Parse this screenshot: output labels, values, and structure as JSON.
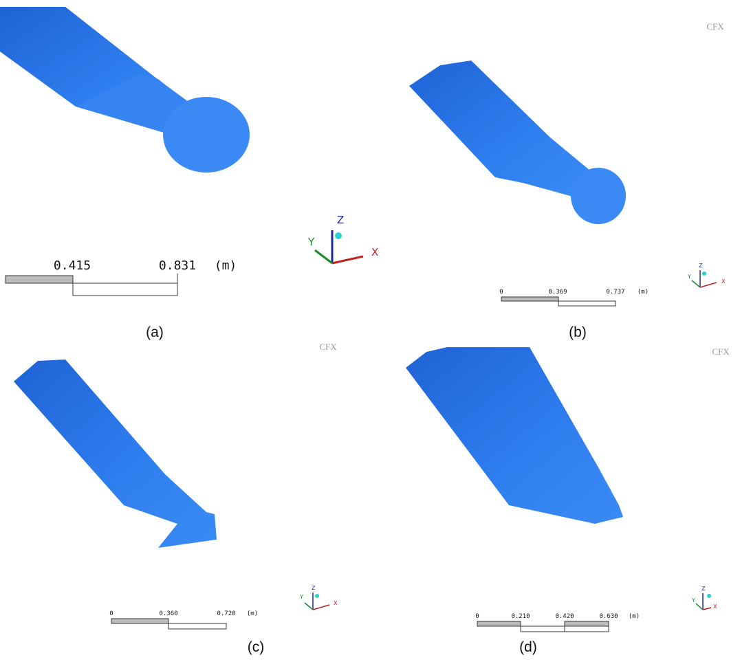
{
  "panels": [
    {
      "caption": "(a)",
      "scale": {
        "labels": [
          "0.415",
          "0.831"
        ],
        "unit": "(m)"
      },
      "axes": {
        "x": "X",
        "y": "Y",
        "z": "Z"
      }
    },
    {
      "caption": "(b)",
      "logo": "CFX",
      "scale": {
        "labels": [
          "0",
          "0.369",
          "0.737"
        ],
        "unit": "(m)"
      },
      "axes": {
        "x": "X",
        "y": "Y",
        "z": "Z"
      }
    },
    {
      "caption": "(c)",
      "logo": "CFX",
      "scale": {
        "labels": [
          "0",
          "0.360",
          "0.720"
        ],
        "unit": "(m)"
      },
      "axes": {
        "x": "X",
        "y": "Y",
        "z": "Z"
      }
    },
    {
      "caption": "(d)",
      "logo": "CFX",
      "scale": {
        "labels": [
          "0",
          "0.210",
          "0.420",
          "0.630"
        ],
        "unit": "(m)"
      },
      "axes": {
        "x": "X",
        "y": "Y",
        "z": "Z"
      }
    }
  ]
}
